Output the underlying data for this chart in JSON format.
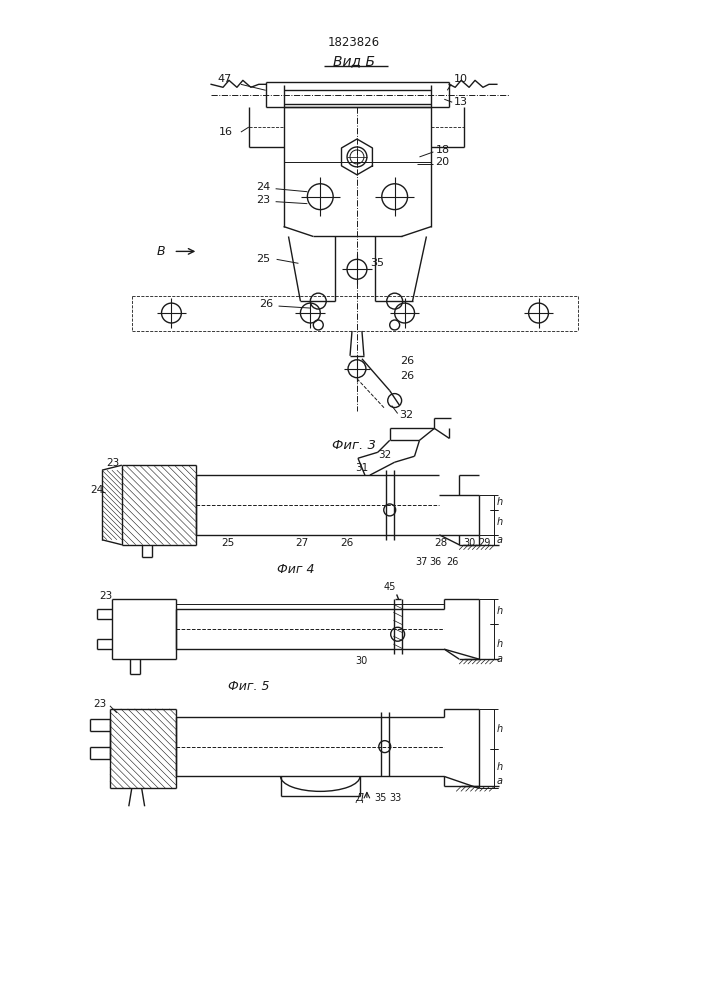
{
  "patent_number": "1823826",
  "background_color": "#ffffff",
  "line_color": "#1a1a1a",
  "fig_width": 7.07,
  "fig_height": 10.0,
  "title_vidb": "Вид Б",
  "fig3_label": "Фиг. 3",
  "fig4_label": "Фиг 4",
  "fig5_label": "Фиг. 5",
  "label_B": "В"
}
